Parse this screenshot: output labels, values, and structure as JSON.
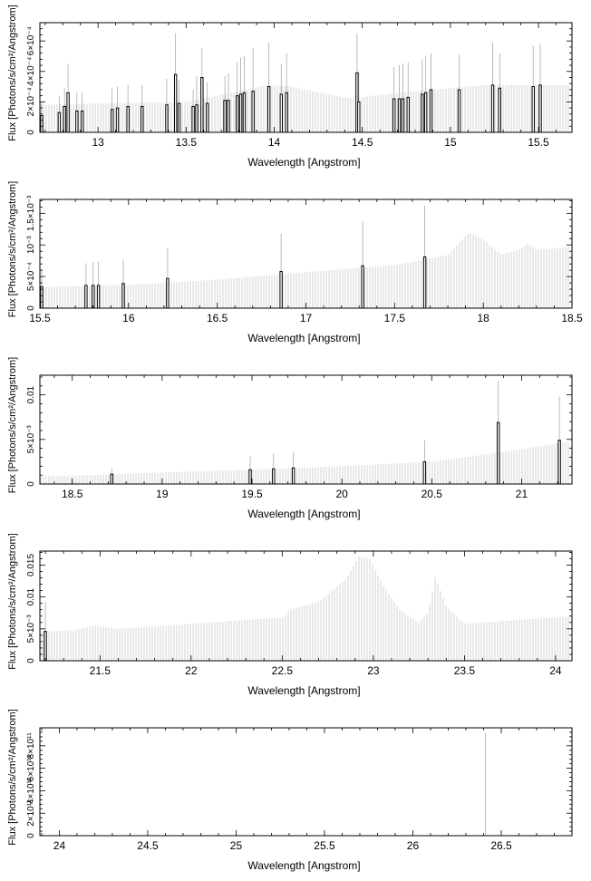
{
  "chart_data": [
    {
      "type": "bar",
      "xlabel": "Wavelength [Angstrom]",
      "ylabel": "Flux [Photons/s/cm²/Angstrom]",
      "xlim": [
        12.67,
        15.69
      ],
      "ylim": [
        0,
        0.00072
      ],
      "xticks": [
        13,
        13.5,
        14,
        14.5,
        15,
        15.5
      ],
      "xtick_labels": [
        "13",
        "13.5",
        "14",
        "14.5",
        "15",
        "15.5"
      ],
      "yticks": [
        0,
        0.0002,
        0.0004,
        0.0006
      ],
      "ytick_labels": [
        "0",
        "2×10⁻⁴",
        "4×10⁻⁴",
        "6×10⁻⁴"
      ],
      "continuum": [
        [
          12.67,
          0.00018
        ],
        [
          13.0,
          0.00019
        ],
        [
          13.5,
          0.0002
        ],
        [
          13.8,
          0.00027
        ],
        [
          13.95,
          0.00031
        ],
        [
          14.1,
          0.0003
        ],
        [
          14.3,
          0.00025
        ],
        [
          14.45,
          0.00022
        ],
        [
          14.55,
          0.00024
        ],
        [
          14.8,
          0.00027
        ],
        [
          15.0,
          0.00029
        ],
        [
          15.2,
          0.00031
        ],
        [
          15.4,
          0.00031
        ],
        [
          15.69,
          0.00031
        ]
      ],
      "lines": [
        [
          12.68,
          0.00011,
          0.0002
        ],
        [
          12.78,
          0.00013,
          0.00024
        ],
        [
          12.81,
          0.00017,
          0.00029
        ],
        [
          12.83,
          0.00026,
          0.00045
        ],
        [
          12.88,
          0.00014,
          0.00026
        ],
        [
          12.91,
          0.00014,
          0.00026
        ],
        [
          13.08,
          0.00015,
          0.00029
        ],
        [
          13.11,
          0.00016,
          0.0003
        ],
        [
          13.17,
          0.00017,
          0.00031
        ],
        [
          13.25,
          0.00017,
          0.00031
        ],
        [
          13.39,
          0.00018,
          0.00035
        ],
        [
          13.44,
          0.00038,
          0.00065
        ],
        [
          13.46,
          0.00019,
          0.00034
        ],
        [
          13.54,
          0.00017,
          0.00028
        ],
        [
          13.56,
          0.00018,
          0.00037
        ],
        [
          13.59,
          0.00036,
          0.00055
        ],
        [
          13.62,
          0.00019,
          0.00033
        ],
        [
          13.72,
          0.00021,
          0.00037
        ],
        [
          13.74,
          0.00021,
          0.00039
        ],
        [
          13.79,
          0.00024,
          0.00046
        ],
        [
          13.81,
          0.00025,
          0.00049
        ],
        [
          13.83,
          0.00026,
          0.0005
        ],
        [
          13.88,
          0.00027,
          0.00055
        ],
        [
          13.97,
          0.0003,
          0.00059
        ],
        [
          14.04,
          0.00025,
          0.00045
        ],
        [
          14.07,
          0.00026,
          0.00052
        ],
        [
          14.47,
          0.00039,
          0.00065
        ],
        [
          14.48,
          0.0002,
          0.0004
        ],
        [
          14.68,
          0.00022,
          0.00043
        ],
        [
          14.71,
          0.00022,
          0.00044
        ],
        [
          14.73,
          0.00022,
          0.00045
        ],
        [
          14.76,
          0.00023,
          0.00046
        ],
        [
          14.84,
          0.00025,
          0.00048
        ],
        [
          14.86,
          0.00026,
          0.0005
        ],
        [
          14.89,
          0.00028,
          0.00052
        ],
        [
          15.05,
          0.00028,
          0.00051
        ],
        [
          15.24,
          0.00031,
          0.00059
        ],
        [
          15.28,
          0.00029,
          0.00052
        ],
        [
          15.47,
          0.0003,
          0.00057
        ],
        [
          15.51,
          0.00031,
          0.00058
        ]
      ]
    },
    {
      "type": "bar",
      "xlabel": "Wavelength [Angstrom]",
      "ylabel": "Flux [Photons/s/cm²/Angstrom]",
      "xlim": [
        15.5,
        18.5
      ],
      "ylim": [
        0,
        0.00172
      ],
      "xticks": [
        15.5,
        16,
        16.5,
        17,
        17.5,
        18,
        18.5
      ],
      "xtick_labels": [
        "15.5",
        "16",
        "16.5",
        "17",
        "17.5",
        "18",
        "18.5"
      ],
      "yticks": [
        0,
        0.0005,
        0.001,
        0.0015
      ],
      "ytick_labels": [
        "0",
        "5×10⁻⁴",
        "10⁻³",
        "1.5×10⁻³"
      ],
      "continuum": [
        [
          15.5,
          0.00033
        ],
        [
          16.0,
          0.00037
        ],
        [
          16.5,
          0.00045
        ],
        [
          17.0,
          0.00057
        ],
        [
          17.5,
          0.00068
        ],
        [
          17.8,
          0.00084
        ],
        [
          17.92,
          0.0012
        ],
        [
          18.0,
          0.00108
        ],
        [
          18.1,
          0.00085
        ],
        [
          18.2,
          0.00092
        ],
        [
          18.25,
          0.00102
        ],
        [
          18.3,
          0.00092
        ],
        [
          18.5,
          0.00097
        ]
      ],
      "lines": [
        [
          15.51,
          0.00034,
          0.00062
        ],
        [
          15.76,
          0.00036,
          0.00071
        ],
        [
          15.8,
          0.00036,
          0.00073
        ],
        [
          15.83,
          0.00036,
          0.00074
        ],
        [
          15.97,
          0.00039,
          0.00077
        ],
        [
          16.22,
          0.00047,
          0.00095
        ],
        [
          16.86,
          0.00058,
          0.00118
        ],
        [
          17.32,
          0.00067,
          0.00138
        ],
        [
          17.67,
          0.00081,
          0.00162
        ]
      ]
    },
    {
      "type": "bar",
      "xlabel": "Wavelength [Angstrom]",
      "ylabel": "Flux [Photons/s/cm²/Angstrom]",
      "xlim": [
        18.32,
        21.28
      ],
      "ylim": [
        0,
        0.0122
      ],
      "xticks": [
        18.5,
        19,
        19.5,
        20,
        20.5,
        21
      ],
      "xtick_labels": [
        "18.5",
        "19",
        "19.5",
        "20",
        "20.5",
        "21"
      ],
      "yticks": [
        0,
        0.005,
        0.01
      ],
      "ytick_labels": [
        "0",
        "5×10⁻³",
        "0.01"
      ],
      "continuum": [
        [
          18.32,
          0.00085
        ],
        [
          18.7,
          0.00105
        ],
        [
          19.0,
          0.0013
        ],
        [
          19.5,
          0.0016
        ],
        [
          20.0,
          0.002
        ],
        [
          20.5,
          0.0025
        ],
        [
          20.9,
          0.0036
        ],
        [
          21.28,
          0.0048
        ]
      ],
      "lines": [
        [
          18.72,
          0.0011,
          0.0018
        ],
        [
          19.49,
          0.0016,
          0.0031
        ],
        [
          19.62,
          0.0017,
          0.0034
        ],
        [
          19.73,
          0.0018,
          0.0036
        ],
        [
          20.46,
          0.0025,
          0.0049
        ],
        [
          20.87,
          0.0069,
          0.0115
        ],
        [
          21.21,
          0.0049,
          0.0098
        ]
      ]
    },
    {
      "type": "bar",
      "xlabel": "Wavelength [Angstrom]",
      "ylabel": "Flux [Photons/s/cm²/Angstrom]",
      "xlim": [
        21.17,
        24.09
      ],
      "ylim": [
        0,
        0.0172
      ],
      "xticks": [
        21.5,
        22,
        22.5,
        23,
        23.5,
        24
      ],
      "xtick_labels": [
        "21.5",
        "22",
        "22.5",
        "23",
        "23.5",
        "24"
      ],
      "yticks": [
        0,
        0.005,
        0.01,
        0.015
      ],
      "ytick_labels": [
        "0",
        "5×10⁻³",
        "0.01",
        "0.015"
      ],
      "continuum": [
        [
          21.17,
          0.0045
        ],
        [
          21.35,
          0.0048
        ],
        [
          21.47,
          0.0055
        ],
        [
          21.6,
          0.005
        ],
        [
          22.0,
          0.0058
        ],
        [
          22.5,
          0.0068
        ],
        [
          22.55,
          0.0081
        ],
        [
          22.7,
          0.0092
        ],
        [
          22.85,
          0.0128
        ],
        [
          22.92,
          0.0163
        ],
        [
          22.98,
          0.016
        ],
        [
          23.05,
          0.012
        ],
        [
          23.15,
          0.0078
        ],
        [
          23.25,
          0.006
        ],
        [
          23.3,
          0.0075
        ],
        [
          23.34,
          0.0132
        ],
        [
          23.4,
          0.0085
        ],
        [
          23.5,
          0.0058
        ],
        [
          24.09,
          0.007
        ]
      ],
      "lines": [
        [
          21.2,
          0.0046,
          0.0092
        ]
      ]
    },
    {
      "type": "bar",
      "xlabel": "Wavelength [Angstrom]",
      "ylabel": "Flux [Photons/s/cm²/Angstrom]",
      "xlim": [
        23.89,
        26.9
      ],
      "ylim": [
        0,
        960000000000.0
      ],
      "xticks": [
        24,
        24.5,
        25,
        25.5,
        26,
        26.5
      ],
      "xtick_labels": [
        "24",
        "24.5",
        "25",
        "25.5",
        "26",
        "26.5"
      ],
      "yticks": [
        0,
        200000000000.0,
        400000000000.0,
        600000000000.0,
        800000000000.0
      ],
      "ytick_labels": [
        "0",
        "2×10¹¹",
        "4×10¹¹",
        "6×10¹¹",
        "8×10¹¹"
      ],
      "continuum": [
        [
          23.89,
          0
        ],
        [
          26.9,
          0
        ]
      ],
      "lines": [
        [
          26.41,
          0,
          920000000000.0
        ]
      ]
    }
  ]
}
